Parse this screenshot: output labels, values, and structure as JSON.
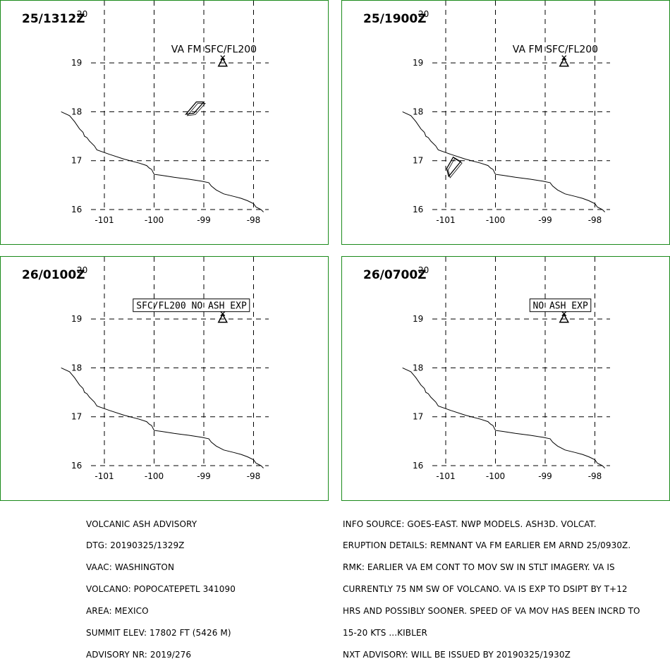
{
  "panels": [
    {
      "time": "25/1312Z",
      "label": "VA FM SFC/FL200",
      "label_boxed": false,
      "ash_area": [
        [
          -99.15,
          18.2
        ],
        [
          -99.0,
          18.2
        ],
        [
          -99.2,
          17.97
        ],
        [
          -99.36,
          17.95
        ]
      ]
    },
    {
      "time": "25/1900Z",
      "label": "VA FM SFC/FL200",
      "label_boxed": false,
      "ash_area": [
        [
          -100.85,
          17.07
        ],
        [
          -100.7,
          16.98
        ],
        [
          -100.94,
          16.68
        ],
        [
          -100.98,
          16.84
        ]
      ]
    },
    {
      "time": "26/0100Z",
      "label": "SFC/FL200 NO ASH EXP",
      "label_boxed": true,
      "ash_area": []
    },
    {
      "time": "26/0700Z",
      "label": "NO ASH EXP",
      "label_boxed": true,
      "ash_area": []
    }
  ],
  "map": {
    "lon_ticks": [
      "-101",
      "-100",
      "-99",
      "-98"
    ],
    "lat_ticks": [
      "20",
      "19",
      "18",
      "17",
      "16"
    ],
    "lon_values": [
      -101,
      -100,
      -99,
      -98
    ],
    "lat_values": [
      20,
      19,
      18,
      17,
      16
    ],
    "volcano": {
      "lon": -98.62,
      "lat": 19.02
    },
    "coastline": [
      [
        -101.87,
        18.0
      ],
      [
        -101.7,
        17.92
      ],
      [
        -101.6,
        17.8
      ],
      [
        -101.5,
        17.65
      ],
      [
        -101.43,
        17.58
      ],
      [
        -101.4,
        17.5
      ],
      [
        -101.35,
        17.47
      ],
      [
        -101.3,
        17.4
      ],
      [
        -101.2,
        17.3
      ],
      [
        -101.15,
        17.22
      ],
      [
        -100.9,
        17.13
      ],
      [
        -100.6,
        17.03
      ],
      [
        -100.3,
        16.95
      ],
      [
        -100.15,
        16.9
      ],
      [
        -100.1,
        16.85
      ],
      [
        -100.05,
        16.82
      ],
      [
        -100.0,
        16.72
      ],
      [
        -99.85,
        16.7
      ],
      [
        -99.6,
        16.66
      ],
      [
        -99.3,
        16.62
      ],
      [
        -99.05,
        16.58
      ],
      [
        -98.9,
        16.55
      ],
      [
        -98.85,
        16.48
      ],
      [
        -98.75,
        16.4
      ],
      [
        -98.6,
        16.32
      ],
      [
        -98.4,
        16.27
      ],
      [
        -98.25,
        16.23
      ],
      [
        -98.12,
        16.18
      ],
      [
        -98.0,
        16.12
      ],
      [
        -97.95,
        16.05
      ],
      [
        -97.85,
        16.0
      ],
      [
        -97.8,
        15.95
      ]
    ],
    "colors": {
      "border": "#1a8a1a",
      "grid": "#000000"
    }
  },
  "advisory_left": [
    "VOLCANIC ASH ADVISORY",
    "DTG: 20190325/1329Z",
    "VAAC: WASHINGTON",
    "VOLCANO: POPOCATEPETL 341090",
    "AREA: MEXICO",
    "SUMMIT ELEV: 17802 FT (5426 M)",
    "ADVISORY NR: 2019/276"
  ],
  "advisory_right": [
    "INFO SOURCE: GOES-EAST. NWP MODELS. ASH3D. VOLCAT.",
    "ERUPTION DETAILS: REMNANT VA FM EARLIER EM ARND 25/0930Z.",
    "RMK: EARLIER VA EM CONT TO MOV SW IN STLT IMAGERY. VA IS",
    "CURRENTLY 75 NM SW OF VOLCANO. VA IS EXP TO DSIPT BY T+12",
    "HRS AND POSSIBLY SOONER. SPEED OF VA MOV HAS BEEN INCRD TO",
    "15-20 KTS ...KIBLER",
    "NXT ADVISORY: WILL BE ISSUED BY 20190325/1930Z"
  ]
}
